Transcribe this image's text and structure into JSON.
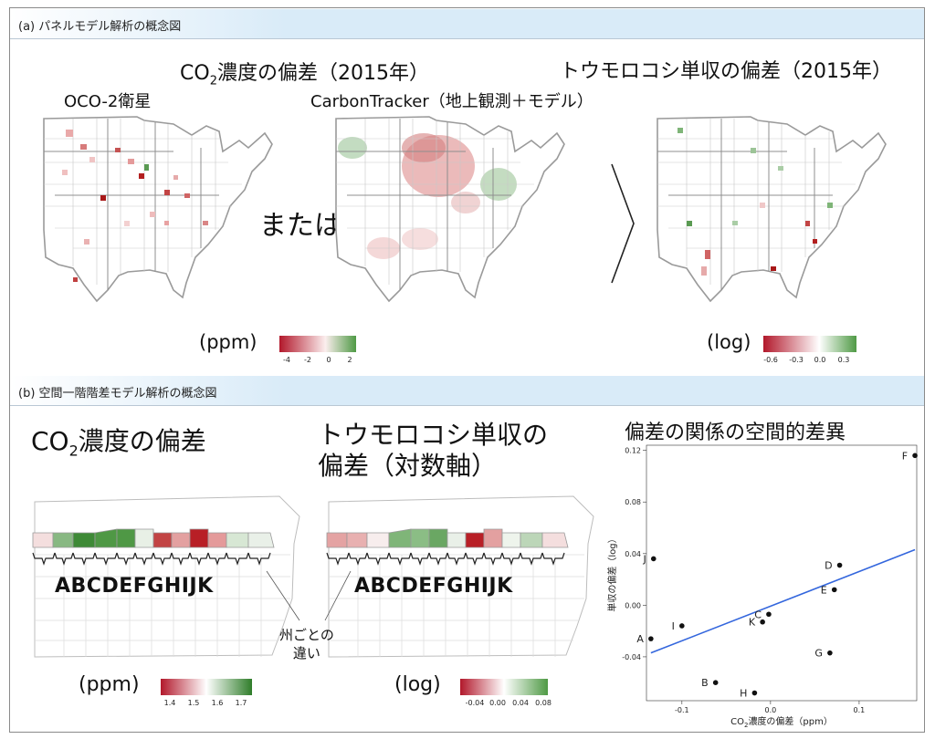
{
  "panel_a": {
    "header": "(a) パネルモデル解析の概念図",
    "co2_title_pre": "CO",
    "co2_title_sub": "2",
    "co2_title_post": "濃度の偏差（2015年）",
    "oco2_label": "OCO-2衛星",
    "carbontracker_label": "CarbonTracker（地上観測＋モデル）",
    "corn_title": "トウモロコシ単収の偏差（2015年）",
    "or_text": "または",
    "unit_ppm": "(ppm)",
    "unit_log": "(log)",
    "ppm_ticks": [
      "-4",
      "-2",
      "0",
      "2"
    ],
    "log_ticks": [
      "-0.6",
      "-0.3",
      "0.0",
      "0.3"
    ]
  },
  "panel_b": {
    "header": "(b) 空間一階階差モデル解析の概念図",
    "co2_title_pre": "CO",
    "co2_title_sub": "2",
    "co2_title_post": "濃度の偏差",
    "corn_title_line1": "トウモロコシ単収の",
    "corn_title_line2": "偏差（対数軸）",
    "state_letters": "ABCDEFGHIJK",
    "state_diff_line1": "州ごとの",
    "state_diff_line2": "違い",
    "unit_ppm": "(ppm)",
    "unit_log": "(log)",
    "ppm_ticks": [
      "1.4",
      "1.5",
      "1.6",
      "1.7"
    ],
    "log_ticks": [
      "-0.04",
      "0.00",
      "0.04",
      "0.08"
    ],
    "scatter_title": "偏差の関係の空間的差異"
  },
  "colors": {
    "negative": "#b2182b",
    "neutral": "#ffffff",
    "positive": "#3a8a34",
    "trend_line": "#3366dd"
  },
  "chart_data": {
    "type": "scatter",
    "title": "偏差の関係の空間的差異",
    "xlabel_pre": "CO",
    "xlabel_sub": "2",
    "xlabel_post": "濃度の偏差（ppm）",
    "ylabel": "単収の偏差（log）",
    "xlim": [
      -0.14,
      0.165
    ],
    "ylim": [
      -0.074,
      0.124
    ],
    "x_ticks": [
      -0.1,
      0.0,
      0.1
    ],
    "x_tick_labels": [
      "-0.1",
      "0.0",
      "0.1"
    ],
    "y_ticks": [
      -0.04,
      0.0,
      0.04,
      0.08,
      0.12
    ],
    "y_tick_labels": [
      "-0.04",
      "0.00",
      "0.04",
      "0.08",
      "0.12"
    ],
    "points": [
      {
        "label": "A",
        "x": -0.135,
        "y": -0.026
      },
      {
        "label": "B",
        "x": -0.062,
        "y": -0.06
      },
      {
        "label": "C",
        "x": -0.002,
        "y": -0.007
      },
      {
        "label": "D",
        "x": 0.078,
        "y": 0.031
      },
      {
        "label": "E",
        "x": 0.072,
        "y": 0.012
      },
      {
        "label": "F",
        "x": 0.163,
        "y": 0.116
      },
      {
        "label": "G",
        "x": 0.067,
        "y": -0.037
      },
      {
        "label": "H",
        "x": -0.018,
        "y": -0.068
      },
      {
        "label": "I",
        "x": -0.1,
        "y": -0.016
      },
      {
        "label": "J",
        "x": -0.132,
        "y": 0.036
      },
      {
        "label": "K",
        "x": -0.009,
        "y": -0.013
      }
    ],
    "trend_line": {
      "x": [
        -0.135,
        0.163
      ],
      "y": [
        -0.037,
        0.043
      ]
    }
  }
}
